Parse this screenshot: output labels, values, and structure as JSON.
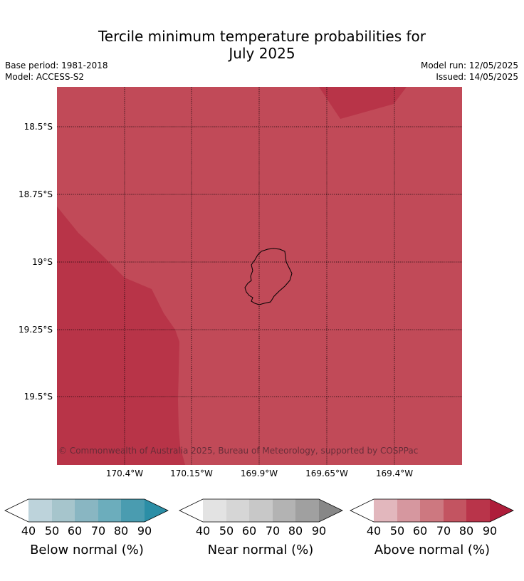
{
  "header": {
    "title_line1": "Tercile minimum temperature probabilities for",
    "title_line2": "July 2025",
    "base_period": "Base period: 1981-2018",
    "model": "Model: ACCESS-S2",
    "model_run": "Model run: 12/05/2025",
    "issued": "Issued: 14/05/2025"
  },
  "map": {
    "credit": "© Commonwealth of Australia 2025, Bureau of Meteorology, supported by COSPPac",
    "lat_labels": [
      "18.5°S",
      "18.75°S",
      "19°S",
      "19.25°S",
      "19.5°S"
    ],
    "lon_labels": [
      "170.4°W",
      "170.15°W",
      "169.9°W",
      "169.65°W",
      "169.4°W"
    ],
    "fill_colors": {
      "above_70_80": "#c14a58",
      "above_80_90": "#b83448"
    },
    "coastline_color": "#000000"
  },
  "colorbars": [
    {
      "title": "Below normal (%)",
      "ticks": [
        "40",
        "50",
        "60",
        "70",
        "80",
        "90"
      ],
      "under_color": "#ffffff",
      "colors": [
        "#bdd3db",
        "#a6c5cc",
        "#89b6c2",
        "#6cadbc",
        "#4a9cb0"
      ],
      "over_color": "#2b8ea6"
    },
    {
      "title": "Near normal (%)",
      "ticks": [
        "40",
        "50",
        "60",
        "70",
        "80",
        "90"
      ],
      "under_color": "#ffffff",
      "colors": [
        "#e3e3e3",
        "#d6d6d6",
        "#c8c8c8",
        "#b3b3b3",
        "#a0a0a0"
      ],
      "over_color": "#878787"
    },
    {
      "title": "Above normal (%)",
      "ticks": [
        "40",
        "50",
        "60",
        "70",
        "80",
        "90"
      ],
      "under_color": "#ffffff",
      "colors": [
        "#e2b7bd",
        "#d6979f",
        "#cd7880",
        "#c35461",
        "#b9344a"
      ],
      "over_color": "#ae1d3a"
    }
  ]
}
